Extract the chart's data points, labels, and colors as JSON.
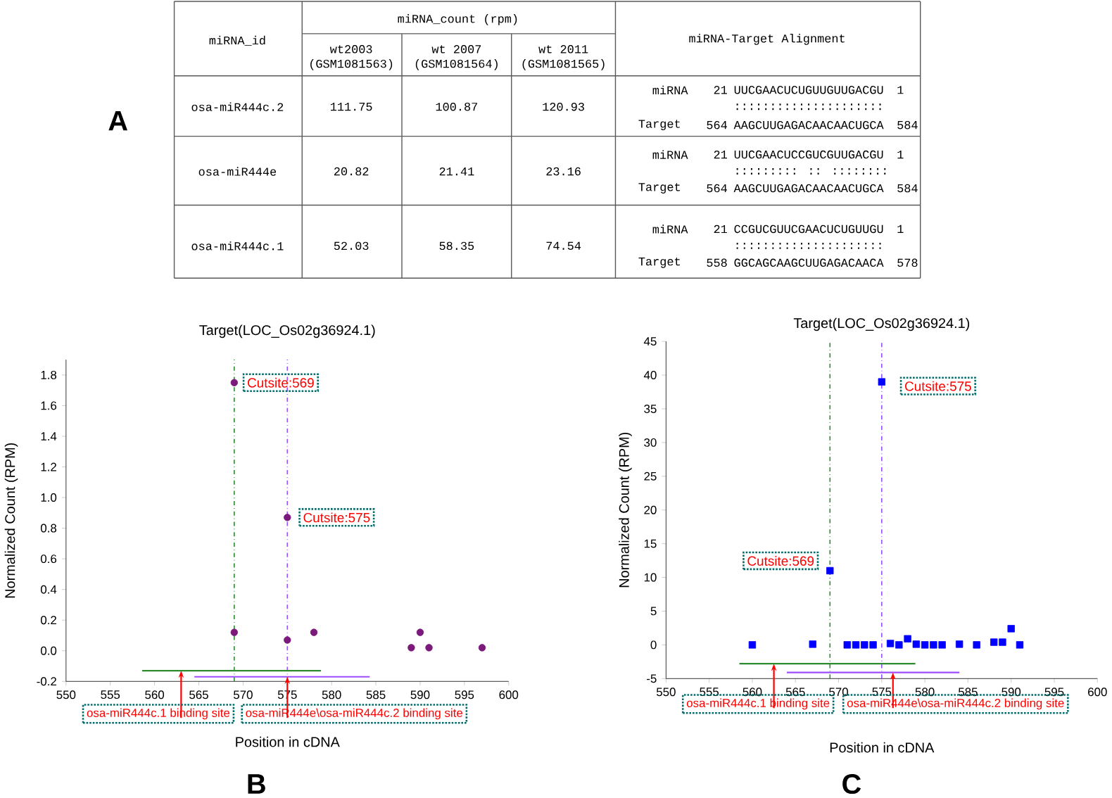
{
  "chart_data": [
    {
      "type": "other",
      "annotations": [
        "A",
        "miRNA_id",
        "miRNA_count (rpm)",
        "wt2003",
        "(GSM1081563)",
        "wt 2007",
        "(GSM1081564)",
        "wt 2011",
        "(GSM1081565)",
        "miRNA-Target Alignment",
        "osa-miR444c.2",
        "111.75",
        "100.87",
        "120.93",
        "miRNA",
        "21",
        "UUCGAACUCUGUUGUUGACGU",
        "1",
        ":::::::::::::::::::::",
        "Target",
        "564",
        "AAGCUUGAGACAACAACUGCA",
        "584",
        "osa-miR444e",
        "20.82",
        "21.41",
        "23.16",
        "miRNA",
        "21",
        "UUCGAACUCCGUCGUUGACGU",
        "1",
        "::::::::: :: ::::::::",
        "Target",
        "564",
        "AAGCUUGAGACAACAACUGCA",
        "584",
        "osa-miR444c.1",
        "52.03",
        "58.35",
        "74.54",
        "miRNA",
        "21",
        "CCGUCGUUCGAACUCUGUUGU",
        "1",
        ":::::::::::::::::::::",
        "Target",
        "558",
        "GGCAGCAAGCUUGAGACAACA",
        "578"
      ]
    },
    {
      "type": "scatter",
      "title": "Target(LOC_Os02g36924.1)",
      "xlabel": "Position in cDNA",
      "ylabel": "Normalized Count (RPM)",
      "marker": "circle",
      "xlim": [
        550,
        600
      ],
      "xticks": [
        550,
        555,
        560,
        565,
        570,
        575,
        580,
        585,
        590,
        595,
        600
      ],
      "ylim": [
        -0.2,
        1.9
      ],
      "yticks": [
        -0.2,
        {
          "value": 0,
          "label": "0.0"
        },
        0.2,
        0.4,
        0.6,
        0.8,
        {
          "value": 1,
          "label": "1.0"
        },
        1.2,
        1.4,
        1.6,
        1.8
      ],
      "series": [
        {
          "type": "scatter",
          "color": "#7b1a7b",
          "x": [
            569,
            569,
            575,
            575,
            578,
            589,
            590,
            591,
            597
          ],
          "values": [
            1.75,
            0.12,
            0.87,
            0.07,
            0.12,
            0.02,
            0.12,
            0.02,
            0.02
          ]
        },
        {
          "type": "line",
          "marker": "none",
          "color": "#2e8b2e",
          "x": [
            558.6,
            578.8
          ],
          "values": [
            -0.13,
            -0.13
          ]
        },
        {
          "type": "line",
          "marker": "none",
          "color": "#9b4dff",
          "x": [
            564.5,
            584.3
          ],
          "values": [
            -0.17,
            -0.17
          ]
        }
      ],
      "ref_lines": [
        {
          "axis": "x",
          "value": 569,
          "color": "#2e8b2e",
          "line_style": "dashed"
        },
        {
          "axis": "x",
          "value": 575,
          "color": "#9b4dff",
          "line_style": "dashed"
        }
      ],
      "annotations": [
        "B",
        {
          "text": "Cutsite:569",
          "x": 569,
          "y": 1.75
        },
        {
          "text": "Cutsite:575",
          "x": 575,
          "y": 0.87
        },
        {
          "text": "osa-miR444c.1 binding site",
          "x": 563,
          "y": -0.13
        },
        {
          "text": "osa-miR444e\\osa-miR444c.2 binding site",
          "x": 575,
          "y": -0.17
        }
      ]
    },
    {
      "type": "scatter",
      "title": "Target(LOC_Os02g36924.1)",
      "xlabel": "Position in cDNA",
      "ylabel": "Normalized Count (RPM)",
      "marker": "square",
      "xlim": [
        550,
        600
      ],
      "xticks": [
        550,
        555,
        560,
        565,
        570,
        575,
        580,
        585,
        590,
        595,
        600
      ],
      "ylim": [
        -5,
        45
      ],
      "yticks": [
        -5,
        0,
        5,
        10,
        15,
        20,
        25,
        30,
        35,
        40,
        45
      ],
      "series": [
        {
          "type": "scatter",
          "color": "#0000ff",
          "x": [
            560,
            567,
            569,
            571,
            572,
            573,
            574,
            575,
            576,
            577,
            578,
            579,
            580,
            581,
            582,
            584,
            586,
            588,
            589,
            590,
            591
          ],
          "values": [
            0,
            0.1,
            11,
            0,
            0,
            0,
            0,
            39,
            0.2,
            0,
            0.9,
            0.1,
            0,
            0,
            0,
            0.1,
            0,
            0.4,
            0.4,
            2.4,
            0
          ]
        },
        {
          "type": "line",
          "marker": "none",
          "color": "#2e8b2e",
          "x": [
            558.5,
            578.9
          ],
          "values": [
            -2.8,
            -2.8
          ]
        },
        {
          "type": "line",
          "marker": "none",
          "color": "#9b4dff",
          "x": [
            564,
            584
          ],
          "values": [
            -4.1,
            -4.1
          ]
        }
      ],
      "ref_lines": [
        {
          "axis": "x",
          "value": 569,
          "color": "#2e8b2e",
          "line_style": "dashed"
        },
        {
          "axis": "x",
          "value": 575,
          "color": "#9b4dff",
          "line_style": "dashed"
        }
      ],
      "annotations": [
        "C",
        {
          "text": "Cutsite:569",
          "x": 569,
          "y": 11
        },
        {
          "text": "Cutsite:575",
          "x": 575,
          "y": 39
        },
        {
          "text": "osa-miR444c.1 binding site",
          "x": 562.5,
          "y": -2.8
        },
        {
          "text": "osa-miR444e\\osa-miR444c.2 binding site",
          "x": 576.3,
          "y": -4.1
        }
      ]
    }
  ]
}
